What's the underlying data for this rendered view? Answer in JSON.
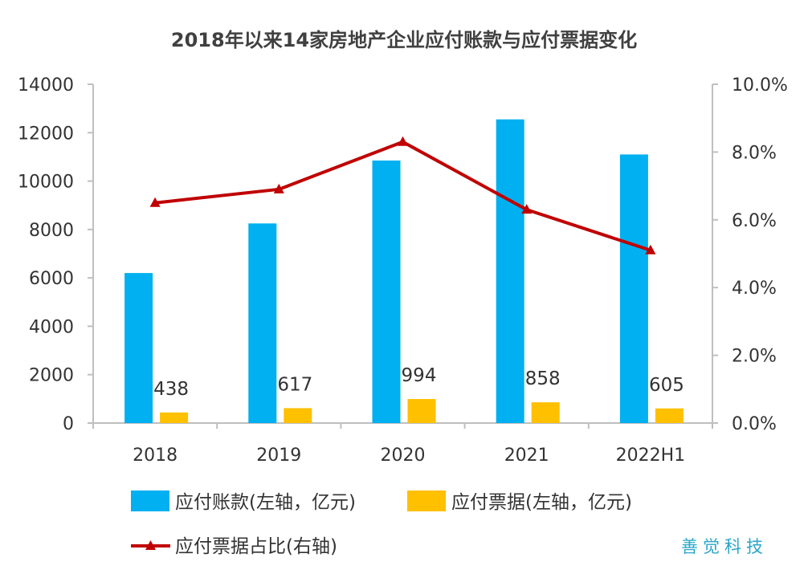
{
  "chart_data": {
    "type": "bar",
    "title": "2018年以来14家房地产企业应付账款与应付票据变化",
    "categories": [
      "2018",
      "2019",
      "2020",
      "2021",
      "2022H1"
    ],
    "series": [
      {
        "name": "应付账款(左轴，亿元)",
        "type": "bar",
        "axis": "left",
        "color": "#00b0f0",
        "values": [
          6200,
          8250,
          10850,
          12550,
          11100
        ]
      },
      {
        "name": "应付票据(左轴，亿元)",
        "type": "bar",
        "axis": "left",
        "color": "#ffc000",
        "values": [
          438,
          617,
          994,
          858,
          605
        ],
        "data_labels": [
          "438",
          "617",
          "994",
          "858",
          "605"
        ]
      },
      {
        "name": "应付票据占比(右轴)",
        "type": "line",
        "axis": "right",
        "color": "#c00000",
        "marker": "triangle",
        "values": [
          6.5,
          6.9,
          8.3,
          6.3,
          5.1
        ]
      }
    ],
    "left_axis": {
      "min": 0,
      "max": 14000,
      "ticks": [
        "0",
        "2000",
        "4000",
        "6000",
        "8000",
        "10000",
        "12000",
        "14000"
      ]
    },
    "right_axis": {
      "min": 0,
      "max": 10,
      "unit": "%",
      "ticks": [
        "0.0%",
        "2.0%",
        "4.0%",
        "6.0%",
        "8.0%",
        "10.0%"
      ]
    },
    "grid": false,
    "legend_position": "bottom"
  },
  "brand": "善觉科技"
}
